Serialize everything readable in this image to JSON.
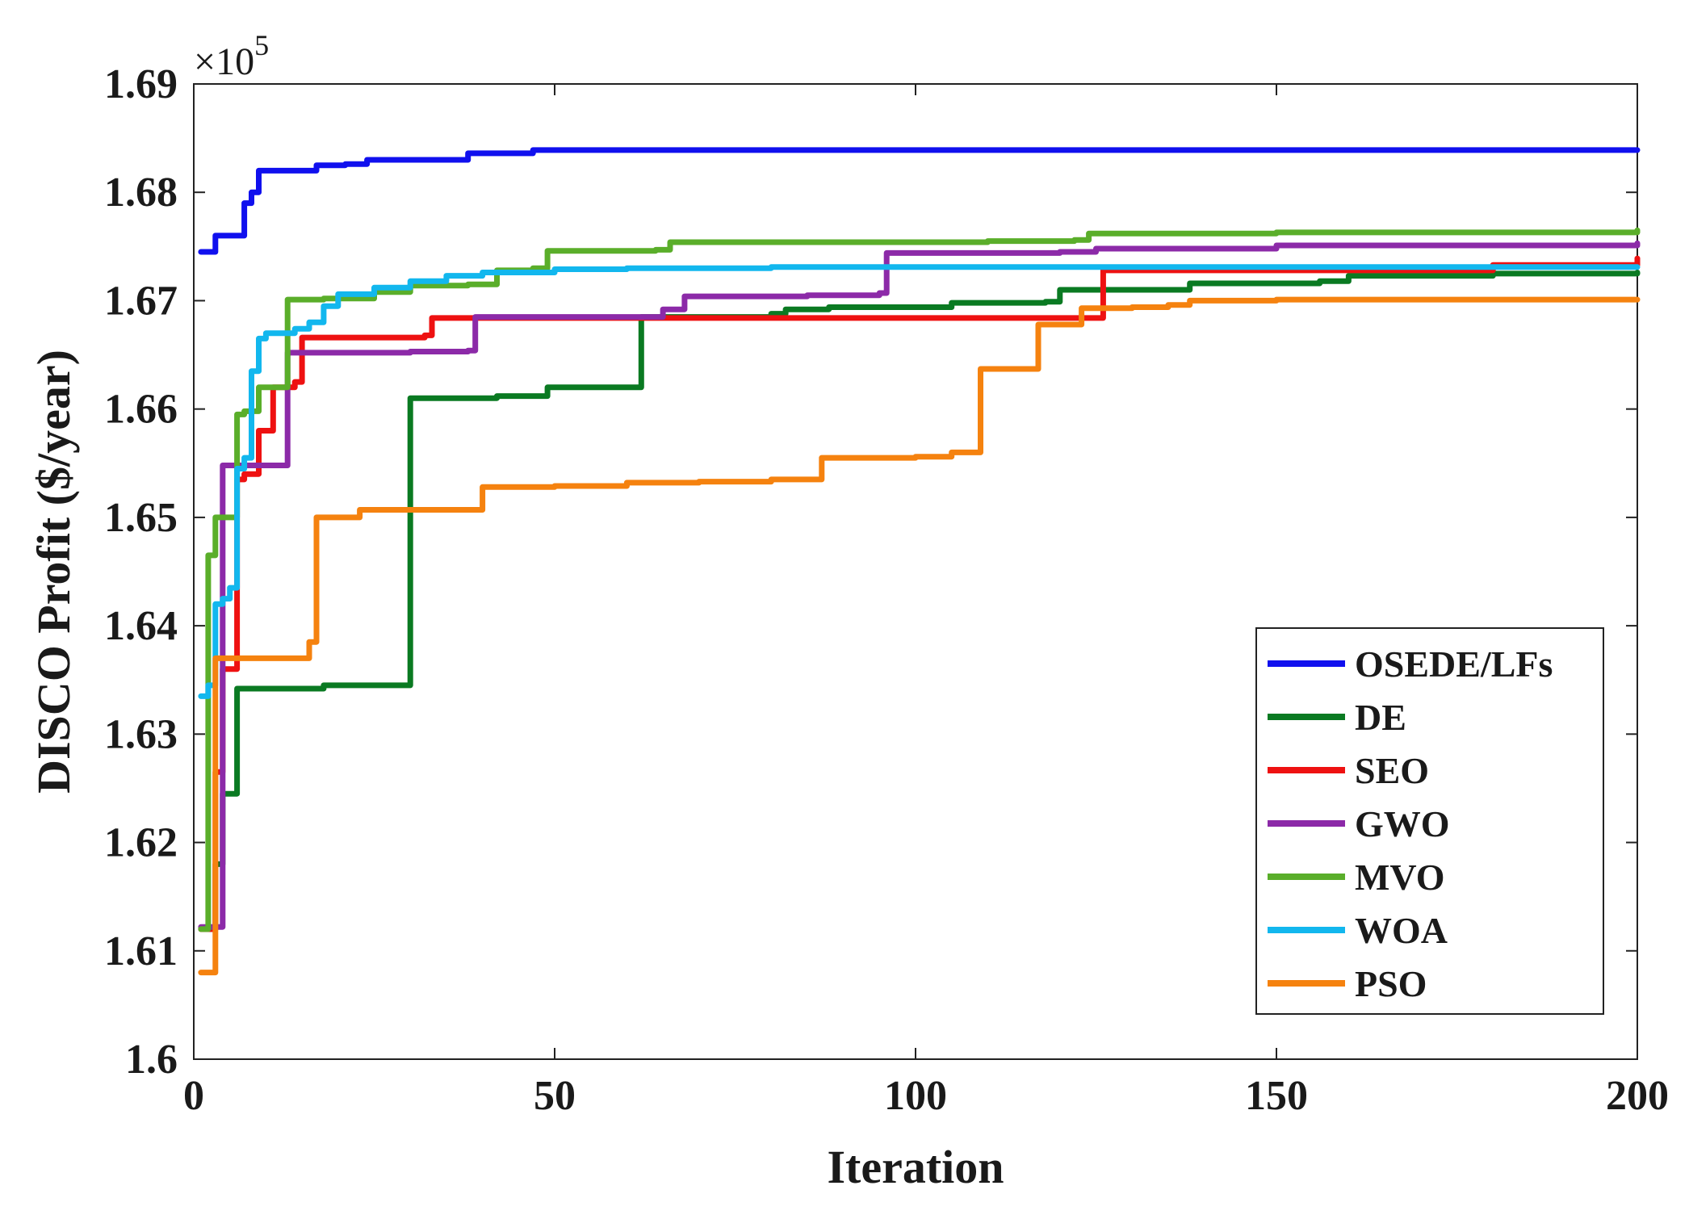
{
  "chart_data": {
    "type": "line",
    "title": "",
    "xlabel": "Iteration",
    "ylabel": "DISCO Profit ($/year)",
    "exponent_label": "×10",
    "exponent_power": "5",
    "xlim": [
      0,
      200
    ],
    "ylim": [
      1.6,
      1.69
    ],
    "xticks": [
      0,
      50,
      100,
      150,
      200
    ],
    "xtick_labels": [
      "0",
      "50",
      "100",
      "150",
      "200"
    ],
    "yticks": [
      1.6,
      1.61,
      1.62,
      1.63,
      1.64,
      1.65,
      1.66,
      1.67,
      1.68,
      1.69
    ],
    "ytick_labels": [
      "1.6",
      "1.61",
      "1.62",
      "1.63",
      "1.64",
      "1.65",
      "1.66",
      "1.67",
      "1.68",
      "1.69"
    ],
    "legend_position": "bottom-right",
    "series": [
      {
        "name": "OSEDE/LFs",
        "color": "#1010ee",
        "points": [
          [
            1,
            1.6745
          ],
          [
            2,
            1.6745
          ],
          [
            3,
            1.676
          ],
          [
            6,
            1.676
          ],
          [
            7,
            1.679
          ],
          [
            8,
            1.68
          ],
          [
            9,
            1.682
          ],
          [
            15,
            1.682
          ],
          [
            17,
            1.6825
          ],
          [
            21,
            1.6826
          ],
          [
            24,
            1.683
          ],
          [
            33,
            1.683
          ],
          [
            38,
            1.6836
          ],
          [
            47,
            1.6839
          ],
          [
            200,
            1.6839
          ]
        ]
      },
      {
        "name": "DE",
        "color": "#0a7a22",
        "points": [
          [
            1,
            1.612
          ],
          [
            2,
            1.612
          ],
          [
            3,
            1.618
          ],
          [
            4,
            1.6245
          ],
          [
            5,
            1.6245
          ],
          [
            6,
            1.6342
          ],
          [
            17,
            1.6342
          ],
          [
            18,
            1.6345
          ],
          [
            29,
            1.6345
          ],
          [
            30,
            1.661
          ],
          [
            40,
            1.661
          ],
          [
            42,
            1.6612
          ],
          [
            48,
            1.6612
          ],
          [
            49,
            1.662
          ],
          [
            61,
            1.662
          ],
          [
            62,
            1.6685
          ],
          [
            80,
            1.6688
          ],
          [
            82,
            1.6692
          ],
          [
            88,
            1.6694
          ],
          [
            105,
            1.6698
          ],
          [
            118,
            1.6699
          ],
          [
            120,
            1.671
          ],
          [
            130,
            1.671
          ],
          [
            138,
            1.6716
          ],
          [
            156,
            1.6718
          ],
          [
            160,
            1.6723
          ],
          [
            180,
            1.6725
          ],
          [
            200,
            1.6726
          ]
        ]
      },
      {
        "name": "SEO",
        "color": "#ee1111",
        "points": [
          [
            1,
            1.612
          ],
          [
            2,
            1.612
          ],
          [
            3,
            1.6265
          ],
          [
            4,
            1.636
          ],
          [
            5,
            1.636
          ],
          [
            6,
            1.6535
          ],
          [
            7,
            1.654
          ],
          [
            8,
            1.654
          ],
          [
            9,
            1.658
          ],
          [
            10,
            1.658
          ],
          [
            11,
            1.662
          ],
          [
            13,
            1.662
          ],
          [
            14,
            1.6625
          ],
          [
            15,
            1.6666
          ],
          [
            25,
            1.6666
          ],
          [
            32,
            1.6668
          ],
          [
            33,
            1.6684
          ],
          [
            50,
            1.6684
          ],
          [
            60,
            1.6684
          ],
          [
            100,
            1.6684
          ],
          [
            120,
            1.6684
          ],
          [
            124,
            1.6684
          ],
          [
            126,
            1.6728
          ],
          [
            150,
            1.6728
          ],
          [
            180,
            1.6733
          ],
          [
            200,
            1.6739
          ]
        ]
      },
      {
        "name": "GWO",
        "color": "#8c2aa8",
        "points": [
          [
            1,
            1.6122
          ],
          [
            3,
            1.6122
          ],
          [
            4,
            1.6548
          ],
          [
            12,
            1.6548
          ],
          [
            13,
            1.6652
          ],
          [
            30,
            1.6653
          ],
          [
            38,
            1.6654
          ],
          [
            39,
            1.6685
          ],
          [
            64,
            1.6685
          ],
          [
            65,
            1.6692
          ],
          [
            68,
            1.6704
          ],
          [
            85,
            1.6705
          ],
          [
            95,
            1.6707
          ],
          [
            96,
            1.6744
          ],
          [
            120,
            1.6745
          ],
          [
            125,
            1.6748
          ],
          [
            150,
            1.6751
          ],
          [
            200,
            1.6753
          ]
        ]
      },
      {
        "name": "MVO",
        "color": "#5aae2a",
        "points": [
          [
            1,
            1.612
          ],
          [
            2,
            1.6465
          ],
          [
            3,
            1.65
          ],
          [
            5,
            1.65
          ],
          [
            6,
            1.6595
          ],
          [
            7,
            1.6598
          ],
          [
            9,
            1.662
          ],
          [
            12,
            1.662
          ],
          [
            13,
            1.6701
          ],
          [
            18,
            1.6702
          ],
          [
            25,
            1.6708
          ],
          [
            30,
            1.6714
          ],
          [
            38,
            1.6715
          ],
          [
            42,
            1.6728
          ],
          [
            47,
            1.673
          ],
          [
            49,
            1.6746
          ],
          [
            64,
            1.6747
          ],
          [
            66,
            1.6754
          ],
          [
            100,
            1.6754
          ],
          [
            110,
            1.6755
          ],
          [
            122,
            1.6756
          ],
          [
            124,
            1.6762
          ],
          [
            150,
            1.6763
          ],
          [
            200,
            1.6765
          ]
        ]
      },
      {
        "name": "WOA",
        "color": "#12b7ee",
        "points": [
          [
            1,
            1.6335
          ],
          [
            2,
            1.6345
          ],
          [
            3,
            1.642
          ],
          [
            4,
            1.6425
          ],
          [
            5,
            1.6435
          ],
          [
            6,
            1.6545
          ],
          [
            7,
            1.6555
          ],
          [
            8,
            1.6635
          ],
          [
            9,
            1.6665
          ],
          [
            10,
            1.667
          ],
          [
            14,
            1.6674
          ],
          [
            16,
            1.668
          ],
          [
            18,
            1.6695
          ],
          [
            20,
            1.6706
          ],
          [
            25,
            1.6712
          ],
          [
            30,
            1.6718
          ],
          [
            35,
            1.6723
          ],
          [
            40,
            1.6726
          ],
          [
            50,
            1.6729
          ],
          [
            60,
            1.673
          ],
          [
            80,
            1.6731
          ],
          [
            120,
            1.6731
          ],
          [
            170,
            1.6731
          ],
          [
            200,
            1.6731
          ]
        ]
      },
      {
        "name": "PSO",
        "color": "#f5820f",
        "points": [
          [
            1,
            1.608
          ],
          [
            2,
            1.608
          ],
          [
            3,
            1.637
          ],
          [
            10,
            1.637
          ],
          [
            15,
            1.637
          ],
          [
            16,
            1.6385
          ],
          [
            17,
            1.65
          ],
          [
            22,
            1.65
          ],
          [
            23,
            1.6507
          ],
          [
            37,
            1.6507
          ],
          [
            39,
            1.6507
          ],
          [
            40,
            1.6528
          ],
          [
            50,
            1.6529
          ],
          [
            60,
            1.6532
          ],
          [
            70,
            1.6533
          ],
          [
            78,
            1.6533
          ],
          [
            80,
            1.6535
          ],
          [
            85,
            1.6535
          ],
          [
            87,
            1.6555
          ],
          [
            95,
            1.6555
          ],
          [
            100,
            1.6556
          ],
          [
            105,
            1.656
          ],
          [
            107,
            1.656
          ],
          [
            109,
            1.6637
          ],
          [
            111,
            1.6637
          ],
          [
            115,
            1.6637
          ],
          [
            117,
            1.6678
          ],
          [
            120,
            1.6678
          ],
          [
            123,
            1.6693
          ],
          [
            130,
            1.6694
          ],
          [
            135,
            1.6696
          ],
          [
            138,
            1.67
          ],
          [
            150,
            1.6701
          ],
          [
            170,
            1.6701
          ],
          [
            200,
            1.6701
          ]
        ]
      }
    ]
  }
}
